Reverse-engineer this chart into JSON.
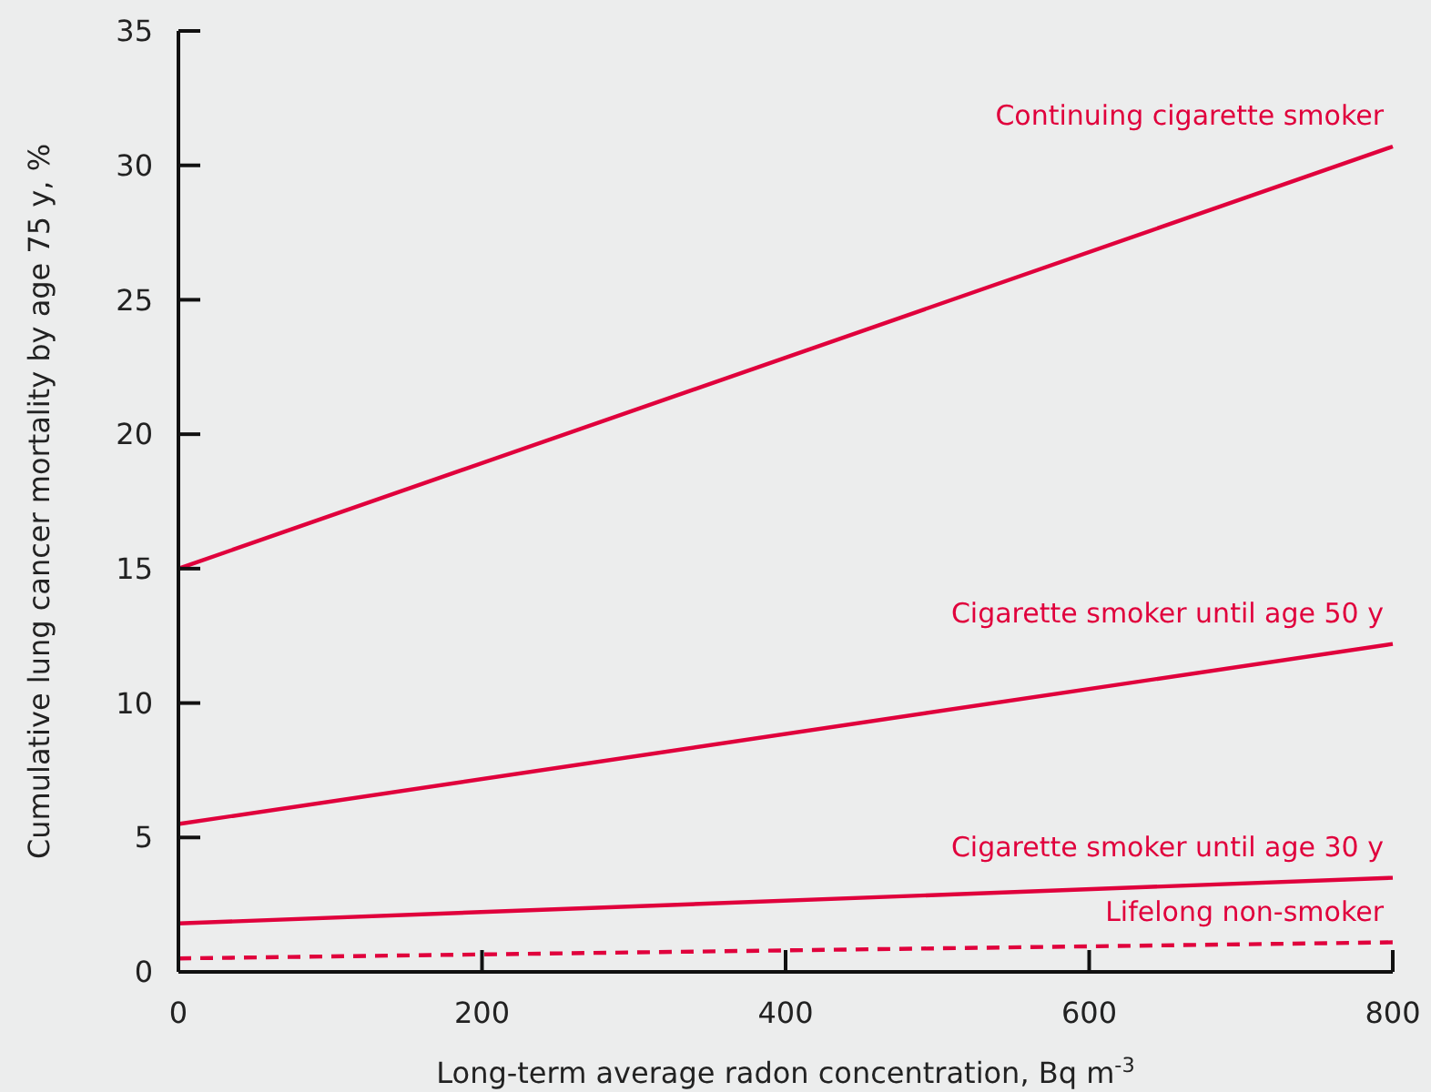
{
  "chart_data": {
    "type": "line",
    "xlabel": "Long-term average radon concentration, Bq m$^{-3}$",
    "ylabel": "Cumulative lung cancer mortality by age 75 y, %",
    "x": [
      0,
      800
    ],
    "xlim": [
      0,
      800
    ],
    "xticks": [
      0,
      200,
      400,
      600,
      800
    ],
    "ylim": [
      0,
      35
    ],
    "yticks": [
      0,
      5,
      10,
      15,
      20,
      25,
      30,
      35
    ],
    "grid": false,
    "legend": false,
    "marker": "none",
    "series": [
      {
        "name": "Continuing cigarette smoker",
        "color": "#e0003c",
        "values": [
          15.0,
          30.7
        ]
      },
      {
        "name": "Cigarette smoker until age 50 y",
        "color": "#e0003c",
        "values": [
          5.5,
          12.2
        ]
      },
      {
        "name": "Cigarette smoker until age 30 y",
        "color": "#e0003c",
        "values": [
          1.8,
          3.5
        ]
      },
      {
        "name": "Lifelong non-smoker",
        "color": "#e0003c",
        "values": [
          0.5,
          1.1
        ],
        "line_style": "dashed"
      }
    ]
  }
}
